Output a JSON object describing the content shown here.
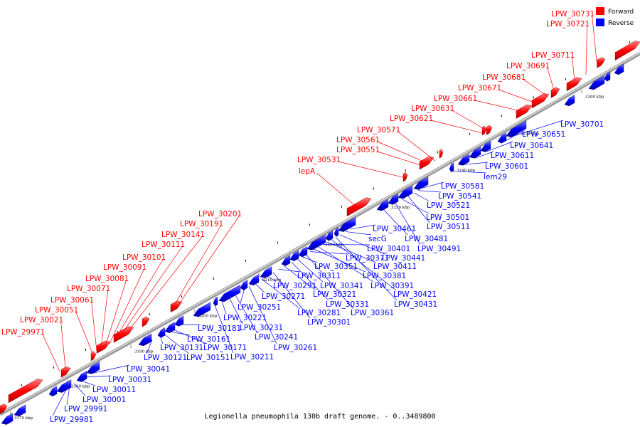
{
  "caption": "Legionella pneumophila 130b draft genome. - 0..3489800",
  "legend": {
    "forward_label": "Forward",
    "reverse_label": "Reverse",
    "forward_color": "#ff0000",
    "reverse_color": "#0000ff"
  },
  "colors": {
    "forward": "#ff0000",
    "reverse": "#0000ff",
    "backbone": "#888888",
    "text_forward": "#ff0000",
    "text_reverse": "#0000ff"
  },
  "ticks": [
    "3170 kbp",
    "3180 kbp",
    "3190 kbp",
    "3200 kbp",
    "3210 kbp",
    "3220 kbp",
    "3230 kbp",
    "3240 kbp",
    "3250 kbp",
    "3260 kbp"
  ],
  "forward_labels": [
    "LPW_29971",
    "LPW_30021",
    "LPW_30051",
    "LPW_30061",
    "LPW_30071",
    "LPW_30081",
    "LPW_30091",
    "LPW_30101",
    "LPW_30111",
    "LPW_30141",
    "LPW_30191",
    "LPW_30201",
    "lepA",
    "LPW_30531",
    "LPW_30551",
    "LPW_30561",
    "LPW_30571",
    "LPW_30621",
    "LPW_30631",
    "LPW_30661",
    "LPW_30671",
    "LPW_30681",
    "LPW_30691",
    "LPW_30711",
    "LPW_30721",
    "LPW_30731"
  ],
  "reverse_labels": [
    "LPW_29981",
    "LPW_29991",
    "LPW_30001",
    "LPW_30011",
    "LPW_30031",
    "LPW_30041",
    "LPW_30121",
    "LPW_30131",
    "LPW_30151",
    "LPW_30161",
    "LPW_30171",
    "LPW_30181",
    "LPW_30211",
    "LPW_30221",
    "LPW_30231",
    "LPW_30241",
    "LPW_30251",
    "LPW_30261",
    "LPW_30271",
    "LPW_30281",
    "LPW_30291",
    "LPW_30301",
    "LPW_30311",
    "LPW_30321",
    "LPW_30331",
    "LPW_30341",
    "LPW_30351",
    "LPW_30361",
    "LPW_30371",
    "LPW_30381",
    "LPW_30391",
    "LPW_30401",
    "LPW_30411",
    "LPW_30421",
    "LPW_30431",
    "LPW_30441",
    "secG",
    "LPW_30461",
    "LPW_30481",
    "LPW_30491",
    "LPW_30501",
    "LPW_30511",
    "LPW_30521",
    "LPW_30541",
    "LPW_30581",
    "lem29",
    "LPW_30601",
    "LPW_30611",
    "LPW_30641",
    "LPW_30651",
    "LPW_30701"
  ]
}
